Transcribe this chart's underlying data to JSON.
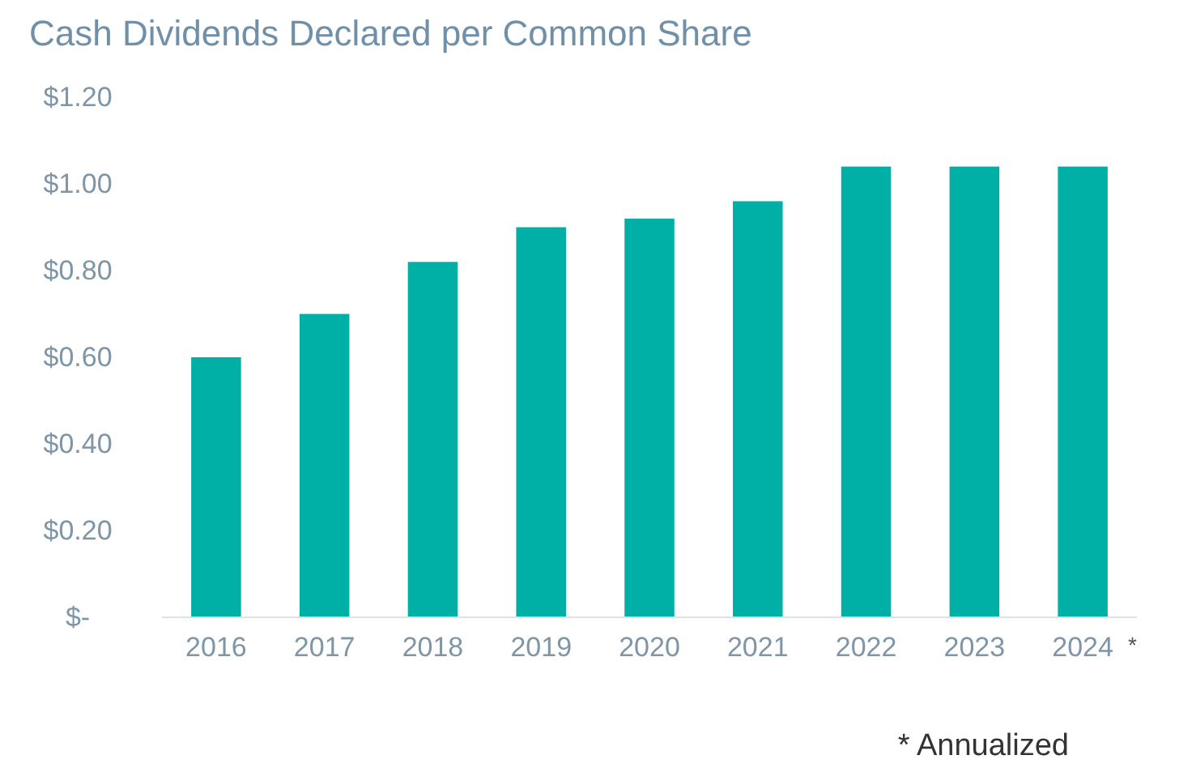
{
  "chart_data": {
    "type": "bar",
    "title": "Cash Dividends Declared per Common Share",
    "categories": [
      "2016",
      "2017",
      "2018",
      "2019",
      "2020",
      "2021",
      "2022",
      "2023",
      "2024"
    ],
    "values": [
      0.6,
      0.7,
      0.82,
      0.9,
      0.92,
      0.96,
      1.04,
      1.04,
      1.04
    ],
    "color": "#00b0a6",
    "ylim": [
      0,
      1.2
    ],
    "yticks": [
      {
        "value": 0,
        "label": "$-"
      },
      {
        "value": 0.2,
        "label": "$0.20"
      },
      {
        "value": 0.4,
        "label": "$0.40"
      },
      {
        "value": 0.6,
        "label": "$0.60"
      },
      {
        "value": 0.8,
        "label": "$0.80"
      },
      {
        "value": 1.0,
        "label": "$1.00"
      },
      {
        "value": 1.2,
        "label": "$1.20"
      }
    ],
    "annotations": [
      "*",
      "* Annualized"
    ]
  }
}
